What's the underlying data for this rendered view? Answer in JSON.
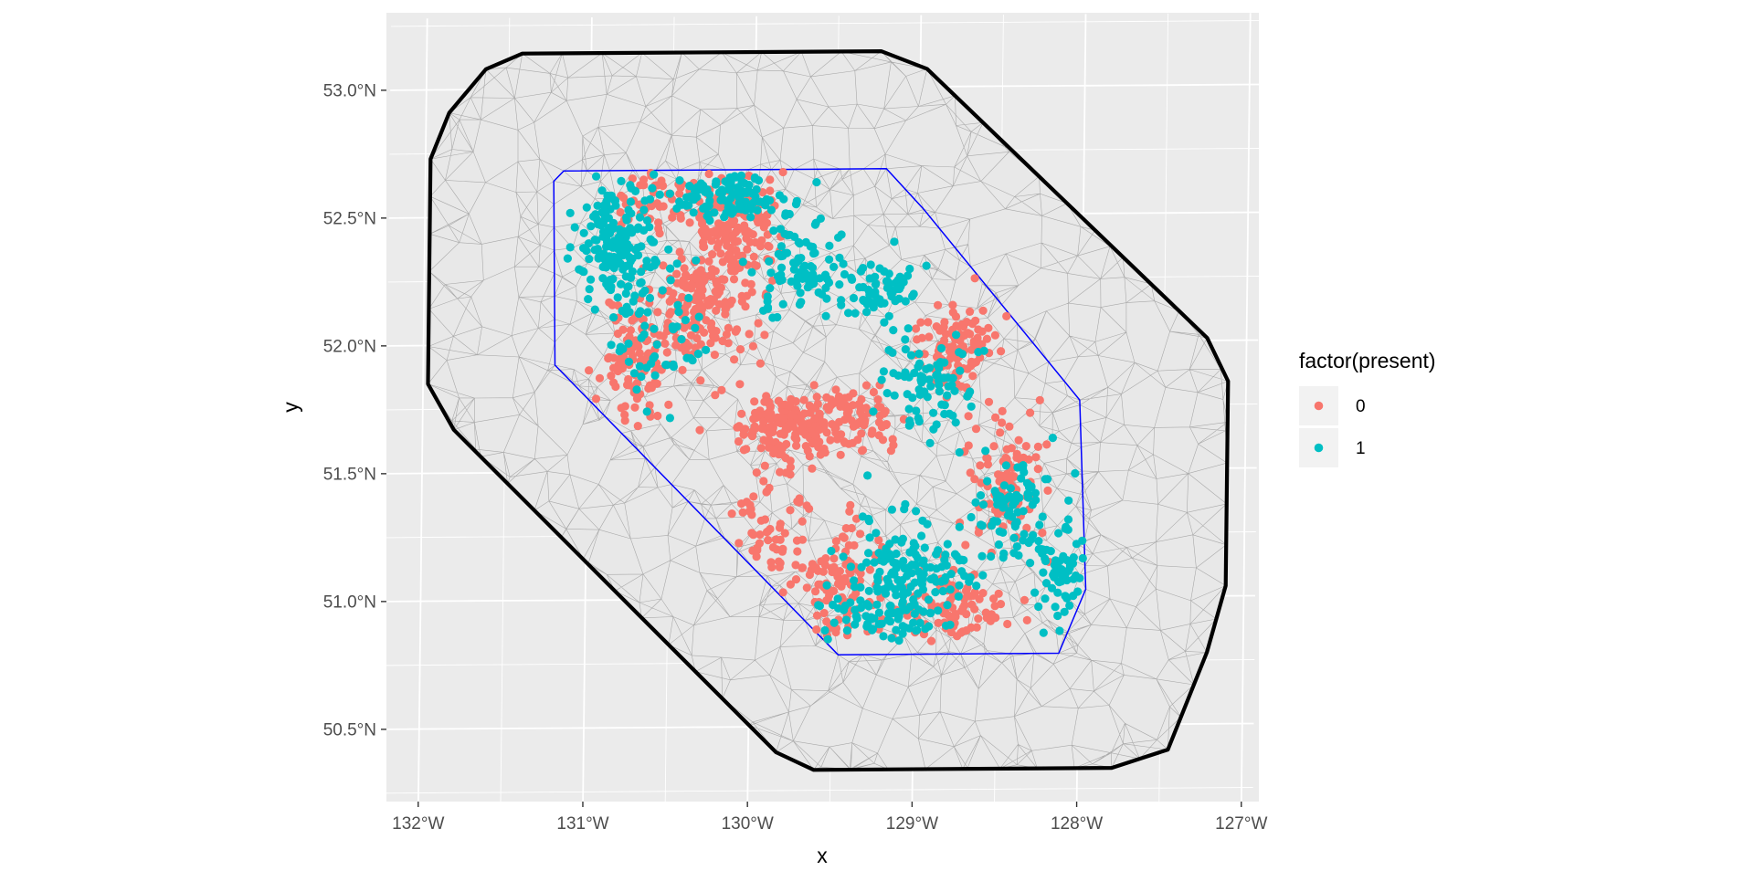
{
  "chart_data": {
    "type": "scatter",
    "xlabel": "x",
    "ylabel": "y",
    "x_ticks": [
      {
        "value": -132,
        "label": "132°W"
      },
      {
        "value": -131,
        "label": "131°W"
      },
      {
        "value": -130,
        "label": "130°W"
      },
      {
        "value": -129,
        "label": "129°W"
      },
      {
        "value": -128,
        "label": "128°W"
      },
      {
        "value": -127,
        "label": "127°W"
      }
    ],
    "y_ticks": [
      {
        "value": 50.5,
        "label": "50.5°N"
      },
      {
        "value": 51.0,
        "label": "51.0°N"
      },
      {
        "value": 51.5,
        "label": "51.5°N"
      },
      {
        "value": 52.0,
        "label": "52.0°N"
      },
      {
        "value": 52.5,
        "label": "52.5°N"
      },
      {
        "value": 53.0,
        "label": "53.0°N"
      }
    ],
    "xlim": [
      -132.22,
      -126.93
    ],
    "ylim": [
      50.18,
      53.28
    ],
    "grid": true,
    "legend": {
      "title": "factor(present)",
      "placement": "right",
      "entries": [
        {
          "label": "0",
          "color": "#F8766D"
        },
        {
          "label": "1",
          "color": "#00BFC4"
        }
      ]
    },
    "outer_boundary": {
      "color": "#000000",
      "lonlat": [
        [
          -131.42,
          53.14
        ],
        [
          -129.24,
          53.14
        ],
        [
          -128.96,
          53.07
        ],
        [
          -127.24,
          52.01
        ],
        [
          -127.11,
          51.84
        ],
        [
          -127.11,
          51.04
        ],
        [
          -127.22,
          50.78
        ],
        [
          -127.45,
          50.4
        ],
        [
          -127.79,
          50.33
        ],
        [
          -129.6,
          50.33
        ],
        [
          -129.83,
          50.4
        ],
        [
          -131.81,
          51.67
        ],
        [
          -131.97,
          51.85
        ],
        [
          -131.97,
          52.73
        ],
        [
          -131.86,
          52.91
        ],
        [
          -131.64,
          53.08
        ]
      ]
    },
    "inner_boundary": {
      "color": "#0000FF",
      "lonlat": [
        [
          -131.16,
          52.68
        ],
        [
          -129.2,
          52.68
        ],
        [
          -128.97,
          52.52
        ],
        [
          -128.01,
          51.77
        ],
        [
          -127.96,
          51.03
        ],
        [
          -128.12,
          50.78
        ],
        [
          -129.46,
          50.78
        ],
        [
          -131.2,
          51.92
        ],
        [
          -131.22,
          52.64
        ]
      ]
    },
    "series": [
      {
        "name": "0",
        "color": "#F8766D",
        "clusters": [
          {
            "center": [
              -130.15,
              52.45
            ],
            "spread": [
              0.22,
              0.15
            ],
            "n": 180
          },
          {
            "center": [
              -130.35,
              52.12
            ],
            "spread": [
              0.25,
              0.18
            ],
            "n": 160
          },
          {
            "center": [
              -130.7,
              51.92
            ],
            "spread": [
              0.16,
              0.15
            ],
            "n": 90
          },
          {
            "center": [
              -129.8,
              51.68
            ],
            "spread": [
              0.22,
              0.1
            ],
            "n": 170
          },
          {
            "center": [
              -129.35,
              51.72
            ],
            "spread": [
              0.18,
              0.1
            ],
            "n": 80
          },
          {
            "center": [
              -128.75,
              51.98
            ],
            "spread": [
              0.16,
              0.12
            ],
            "n": 110
          },
          {
            "center": [
              -128.45,
              51.45
            ],
            "spread": [
              0.15,
              0.2
            ],
            "n": 100
          },
          {
            "center": [
              -129.45,
              51.05
            ],
            "spread": [
              0.22,
              0.18
            ],
            "n": 110
          },
          {
            "center": [
              -128.75,
              50.97
            ],
            "spread": [
              0.25,
              0.1
            ],
            "n": 90
          },
          {
            "center": [
              -129.9,
              51.28
            ],
            "spread": [
              0.2,
              0.12
            ],
            "n": 50
          },
          {
            "center": [
              -130.62,
              52.55
            ],
            "spread": [
              0.14,
              0.08
            ],
            "n": 40
          }
        ]
      },
      {
        "name": "1",
        "color": "#00BFC4",
        "clusters": [
          {
            "center": [
              -130.82,
              52.38
            ],
            "spread": [
              0.18,
              0.18
            ],
            "n": 170
          },
          {
            "center": [
              -130.2,
              52.58
            ],
            "spread": [
              0.3,
              0.06
            ],
            "n": 110
          },
          {
            "center": [
              -129.7,
              52.3
            ],
            "spread": [
              0.18,
              0.15
            ],
            "n": 90
          },
          {
            "center": [
              -129.25,
              52.2
            ],
            "spread": [
              0.18,
              0.1
            ],
            "n": 70
          },
          {
            "center": [
              -128.9,
              51.85
            ],
            "spread": [
              0.2,
              0.15
            ],
            "n": 80
          },
          {
            "center": [
              -128.4,
              51.35
            ],
            "spread": [
              0.18,
              0.15
            ],
            "n": 80
          },
          {
            "center": [
              -129.05,
              51.1
            ],
            "spread": [
              0.3,
              0.15
            ],
            "n": 150
          },
          {
            "center": [
              -128.1,
              51.08
            ],
            "spread": [
              0.1,
              0.14
            ],
            "n": 60
          },
          {
            "center": [
              -129.2,
              50.92
            ],
            "spread": [
              0.28,
              0.08
            ],
            "n": 60
          },
          {
            "center": [
              -130.55,
              52.02
            ],
            "spread": [
              0.18,
              0.2
            ],
            "n": 50
          }
        ]
      }
    ]
  }
}
